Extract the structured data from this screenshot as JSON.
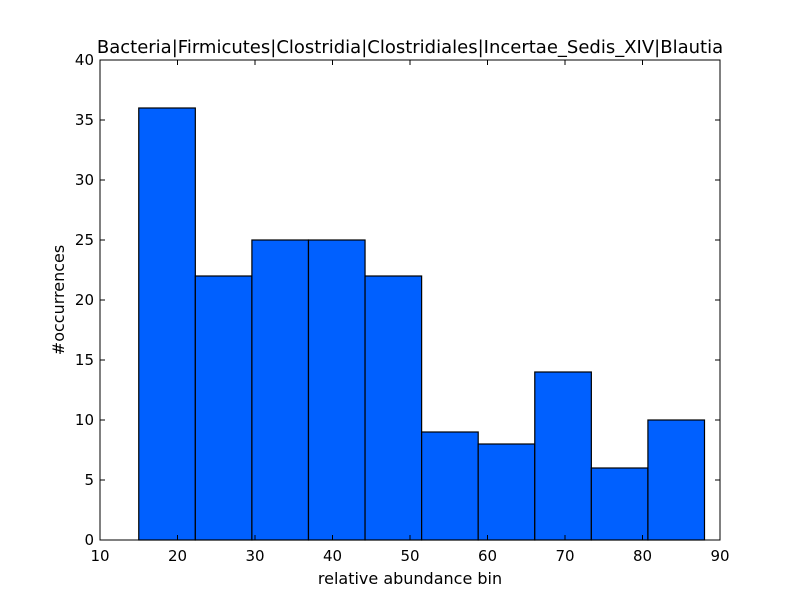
{
  "chart_data": {
    "type": "bar",
    "title": "Bacteria|Firmicutes|Clostridia|Clostridiales|Incertae_Sedis_XIV|Blautia",
    "xlabel": "relative abundance bin",
    "ylabel": "#occurrences",
    "xlim": [
      10,
      90
    ],
    "ylim": [
      0,
      40
    ],
    "xticks": [
      10,
      20,
      30,
      40,
      50,
      60,
      70,
      80,
      90
    ],
    "yticks": [
      0,
      5,
      10,
      15,
      20,
      25,
      30,
      35,
      40
    ],
    "bin_edges": [
      15.0,
      22.3,
      29.6,
      36.9,
      44.2,
      51.5,
      58.8,
      66.1,
      73.4,
      80.7,
      88.0
    ],
    "values": [
      36,
      22,
      25,
      25,
      22,
      9,
      8,
      14,
      6,
      10
    ],
    "grid": false,
    "colors": {
      "bar": "#0060ff",
      "edge": "#000000"
    }
  }
}
